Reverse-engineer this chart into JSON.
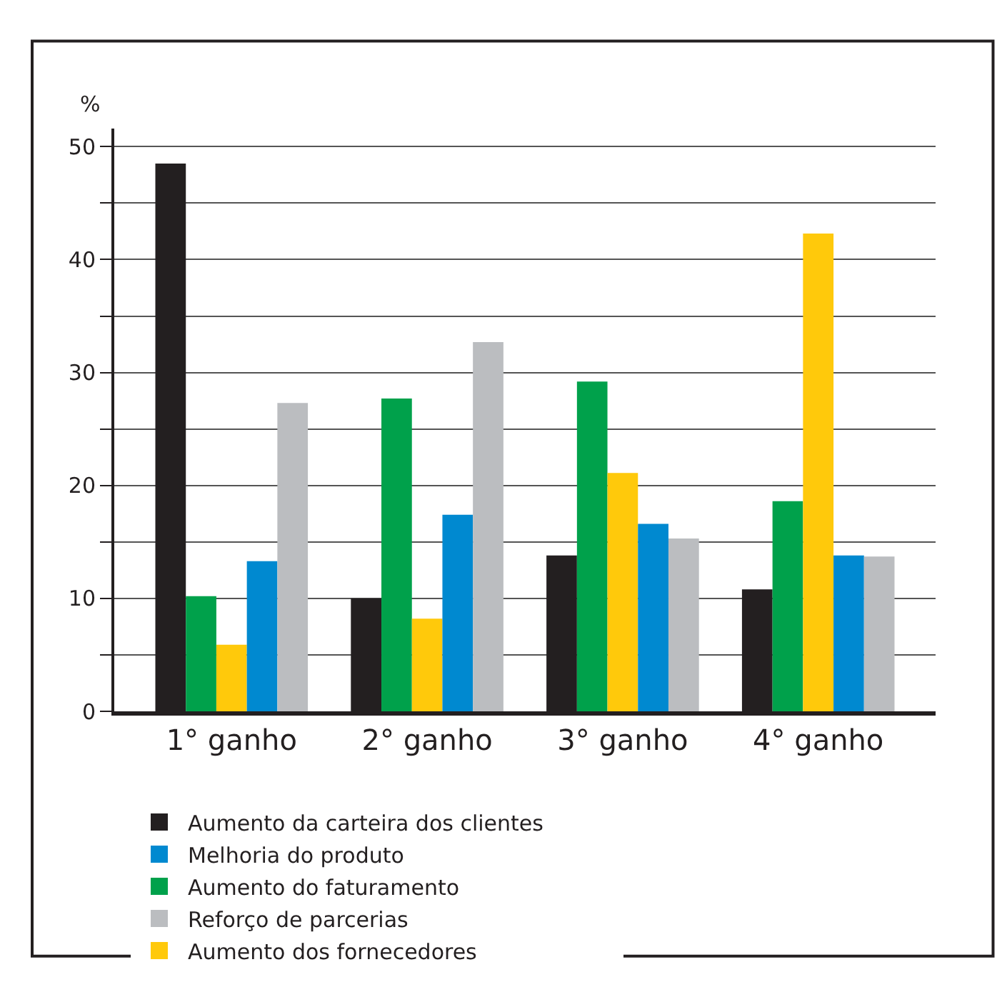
{
  "chart_data": {
    "type": "bar",
    "ylabel": "%",
    "categories": [
      "1° ganho",
      "2° ganho",
      "3° ganho",
      "4° ganho"
    ],
    "series": [
      {
        "name": "Aumento da carteira dos clientes",
        "color": "#231f20",
        "values": [
          48.5,
          10.0,
          13.8,
          10.8
        ]
      },
      {
        "name": "Aumento do faturamento",
        "color": "#00a14b",
        "values": [
          10.2,
          27.7,
          29.2,
          18.6
        ]
      },
      {
        "name": "Aumento dos fornecedores",
        "color": "#ffc90b",
        "values": [
          5.9,
          8.2,
          21.1,
          42.3
        ]
      },
      {
        "name": "Melhoria do produto",
        "color": "#0089d0",
        "values": [
          13.3,
          17.4,
          16.6,
          13.8
        ]
      },
      {
        "name": "Reforço de parcerias",
        "color": "#bbbdc0",
        "values": [
          27.3,
          32.7,
          15.3,
          13.7
        ]
      }
    ],
    "ylim": [
      0,
      51.6
    ],
    "yticks": [
      0,
      {
        "value": 5,
        "label": null
      },
      10,
      {
        "value": 15,
        "label": null
      },
      20,
      {
        "value": 25,
        "label": null
      },
      30,
      {
        "value": 35,
        "label": null
      },
      40,
      {
        "value": 45,
        "label": null
      },
      50
    ],
    "grid": "y",
    "legend": "bottom"
  }
}
